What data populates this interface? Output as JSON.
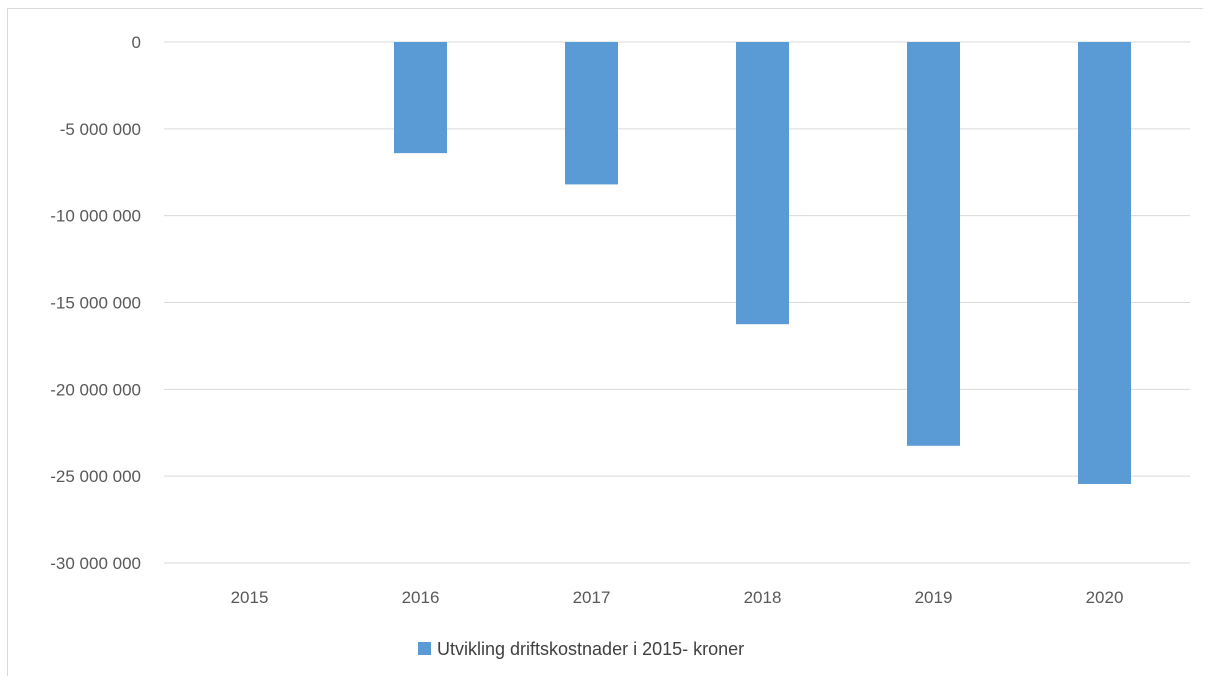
{
  "chart_data": {
    "type": "bar",
    "title": "",
    "xlabel": "",
    "ylabel": "",
    "categories": [
      "2015",
      "2016",
      "2017",
      "2018",
      "2019",
      "2020"
    ],
    "series": [
      {
        "name": "Utvikling driftskostnader i 2015- kroner",
        "values": [
          0,
          -6400000,
          -8200000,
          -16250000,
          -23250000,
          -25450000
        ],
        "color": "#5b9bd5"
      }
    ],
    "ylim": [
      -30000000,
      0
    ],
    "yticks": [
      0,
      -5000000,
      -10000000,
      -15000000,
      -20000000,
      -25000000,
      -30000000
    ],
    "ytick_labels": [
      "0",
      "-5 000 000",
      "-10 000 000",
      "-15 000 000",
      "-20 000 000",
      "-25 000 000",
      "-30 000 000"
    ],
    "grid": true,
    "legend_position": "bottom",
    "gridline_color": "#d9d9d9"
  }
}
